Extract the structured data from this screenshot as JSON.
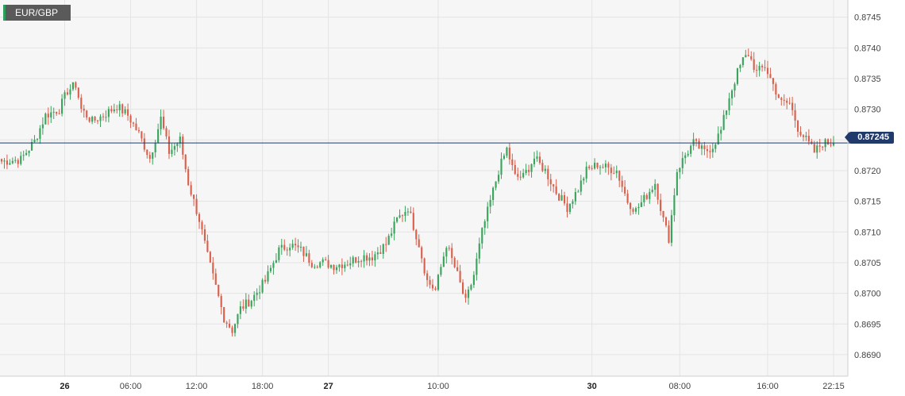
{
  "symbol": "EUR/GBP",
  "current_price_label": "0.87245",
  "colors": {
    "up": "#3aa35c",
    "down": "#d9604c",
    "price_line": "#1f3a6b",
    "badge_bg": "#5a5a5a"
  },
  "chart_data": {
    "type": "candlestick",
    "title": "",
    "y_ticks": [
      "0.8745",
      "0.8740",
      "0.8735",
      "0.8730",
      "0.8725",
      "0.8720",
      "0.8715",
      "0.8710",
      "0.8705",
      "0.8700",
      "0.8695",
      "0.8690"
    ],
    "ylim": [
      0.86865,
      0.87478
    ],
    "x_ticks": [
      {
        "label": "26",
        "bold": true,
        "index": 23
      },
      {
        "label": "06:00",
        "bold": false,
        "index": 47
      },
      {
        "label": "12:00",
        "bold": false,
        "index": 71
      },
      {
        "label": "18:00",
        "bold": false,
        "index": 95
      },
      {
        "label": "27",
        "bold": true,
        "index": 119
      },
      {
        "label": "10:00",
        "bold": false,
        "index": 159
      },
      {
        "label": "30",
        "bold": true,
        "index": 215
      },
      {
        "label": "08:00",
        "bold": false,
        "index": 247
      },
      {
        "label": "16:00",
        "bold": false,
        "index": 279
      },
      {
        "label": "22:15",
        "bold": false,
        "index": 303
      }
    ],
    "current_price": 0.87245,
    "grid": true,
    "waypoints": [
      [
        0,
        0.87215
      ],
      [
        7,
        0.87218
      ],
      [
        12,
        0.87248
      ],
      [
        16,
        0.8729
      ],
      [
        21,
        0.873
      ],
      [
        24,
        0.8733
      ],
      [
        27,
        0.8734
      ],
      [
        29,
        0.873
      ],
      [
        33,
        0.8728
      ],
      [
        37,
        0.8729
      ],
      [
        42,
        0.87305
      ],
      [
        46,
        0.8729
      ],
      [
        50,
        0.8726
      ],
      [
        54,
        0.8722
      ],
      [
        58,
        0.87285
      ],
      [
        61,
        0.8723
      ],
      [
        65,
        0.8725
      ],
      [
        68,
        0.8718
      ],
      [
        72,
        0.8712
      ],
      [
        75,
        0.8706
      ],
      [
        78,
        0.8701
      ],
      [
        81,
        0.8696
      ],
      [
        84,
        0.8694
      ],
      [
        87,
        0.86975
      ],
      [
        91,
        0.8699
      ],
      [
        96,
        0.8702
      ],
      [
        101,
        0.8707
      ],
      [
        105,
        0.8708
      ],
      [
        109,
        0.8707
      ],
      [
        113,
        0.8705
      ],
      [
        117,
        0.8705
      ],
      [
        121,
        0.87045
      ],
      [
        126,
        0.8705
      ],
      [
        131,
        0.8706
      ],
      [
        135,
        0.8706
      ],
      [
        140,
        0.8708
      ],
      [
        144,
        0.8712
      ],
      [
        148,
        0.8714
      ],
      [
        152,
        0.8708
      ],
      [
        155,
        0.8702
      ],
      [
        158,
        0.87005
      ],
      [
        162,
        0.8708
      ],
      [
        166,
        0.8703
      ],
      [
        169,
        0.86985
      ],
      [
        172,
        0.8703
      ],
      [
        175,
        0.871
      ],
      [
        178,
        0.8715
      ],
      [
        181,
        0.872
      ],
      [
        184,
        0.87235
      ],
      [
        187,
        0.8719
      ],
      [
        190,
        0.8719
      ],
      [
        194,
        0.8722
      ],
      [
        198,
        0.872
      ],
      [
        202,
        0.87165
      ],
      [
        206,
        0.8714
      ],
      [
        210,
        0.8717
      ],
      [
        213,
        0.872
      ],
      [
        217,
        0.8721
      ],
      [
        220,
        0.87205
      ],
      [
        224,
        0.872
      ],
      [
        228,
        0.8715
      ],
      [
        231,
        0.87135
      ],
      [
        235,
        0.8716
      ],
      [
        238,
        0.8718
      ],
      [
        241,
        0.8712
      ],
      [
        243,
        0.8709
      ],
      [
        246,
        0.872
      ],
      [
        249,
        0.87225
      ],
      [
        252,
        0.87245
      ],
      [
        256,
        0.8723
      ],
      [
        259,
        0.8724
      ],
      [
        262,
        0.87265
      ],
      [
        265,
        0.8732
      ],
      [
        268,
        0.8736
      ],
      [
        270,
        0.8738
      ],
      [
        272,
        0.8739
      ],
      [
        275,
        0.8736
      ],
      [
        278,
        0.8737
      ],
      [
        281,
        0.8734
      ],
      [
        284,
        0.8731
      ],
      [
        287,
        0.8731
      ],
      [
        290,
        0.8727
      ],
      [
        293,
        0.8725
      ],
      [
        296,
        0.8723
      ],
      [
        299,
        0.87245
      ],
      [
        303,
        0.87245
      ]
    ]
  }
}
